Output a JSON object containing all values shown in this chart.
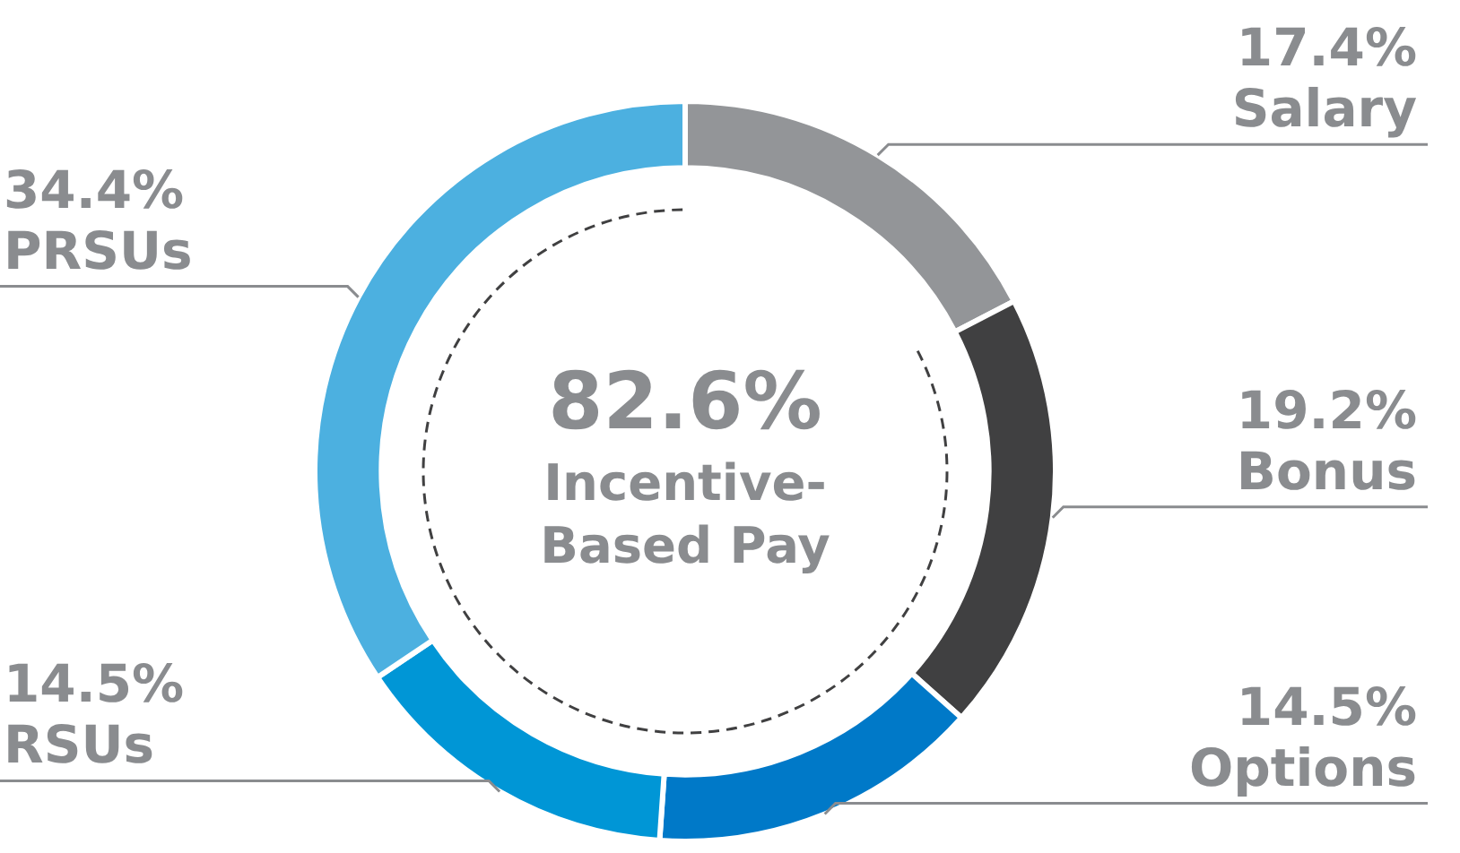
{
  "chart_data": {
    "type": "donut",
    "categories": [
      "Salary",
      "Bonus",
      "Options",
      "RSUs",
      "PRSUs"
    ],
    "values": [
      17.4,
      19.2,
      14.5,
      14.5,
      34.4
    ],
    "value_labels": [
      "17.4%",
      "19.2%",
      "14.5%",
      "14.5%",
      "34.4%"
    ],
    "colors": [
      "#939598",
      "#404041",
      "#0079c8",
      "#0096d6",
      "#4cb0e0"
    ],
    "annotations": [
      "82.6%",
      "Incentive-Based Pay"
    ],
    "legend": false
  }
}
